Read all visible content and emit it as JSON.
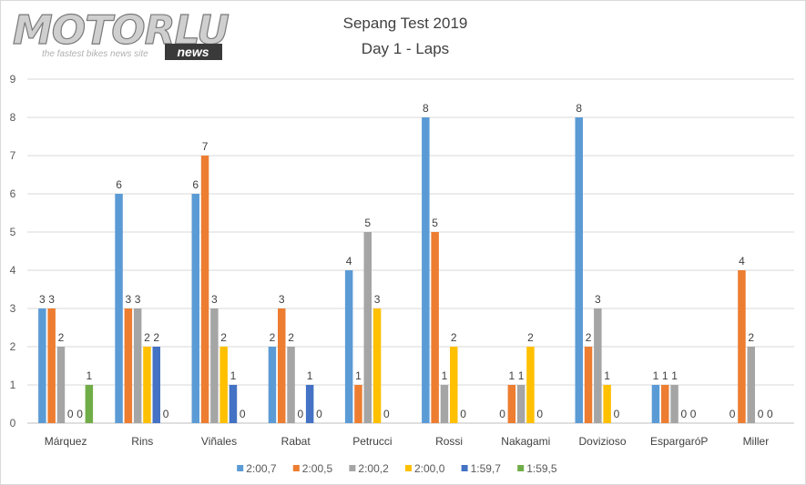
{
  "logo": {
    "brand": "MOTORLU",
    "badge": "news",
    "tagline": "the fastest bikes news site"
  },
  "chart_data": {
    "type": "bar",
    "title": "Sepang Test 2019",
    "subtitle": "Day 1 - Laps",
    "xlabel": "",
    "ylabel": "",
    "ylim": [
      0,
      9
    ],
    "yticks": [
      0,
      1,
      2,
      3,
      4,
      5,
      6,
      7,
      8,
      9
    ],
    "grid": true,
    "legend_position": "bottom",
    "categories": [
      "Márquez",
      "Rins",
      "Viñales",
      "Rabat",
      "Petrucci",
      "Rossi",
      "Nakagami",
      "Dovizioso",
      "EspargaróP",
      "Miller"
    ],
    "series": [
      {
        "name": "2:00,7",
        "color": "#5B9BD5",
        "values": [
          3,
          6,
          6,
          2,
          4,
          8,
          0,
          8,
          1,
          0
        ],
        "labels": [
          "3",
          "6",
          "6",
          "2",
          "4",
          "8",
          "0",
          "8",
          "1",
          "0"
        ]
      },
      {
        "name": "2:00,5",
        "color": "#ED7D31",
        "values": [
          3,
          3,
          7,
          3,
          1,
          5,
          1,
          2,
          1,
          4
        ],
        "labels": [
          "3",
          "3",
          "7",
          "3",
          "1",
          "5",
          "1",
          "2",
          "1",
          "4"
        ]
      },
      {
        "name": "2:00,2",
        "color": "#A5A5A5",
        "values": [
          2,
          3,
          3,
          2,
          5,
          1,
          1,
          3,
          1,
          2
        ],
        "labels": [
          "2",
          "3",
          "3",
          "2",
          "5",
          "1",
          "1",
          "3",
          "1",
          "2"
        ]
      },
      {
        "name": "2:00,0",
        "color": "#FFC000",
        "values": [
          0,
          2,
          2,
          0,
          3,
          2,
          2,
          1,
          0,
          0
        ],
        "labels": [
          "0",
          "2",
          "2",
          "0",
          "3",
          "2",
          "2",
          "1",
          "0",
          "0"
        ]
      },
      {
        "name": "1:59,7",
        "color": "#4472C4",
        "values": [
          0,
          2,
          1,
          1,
          0,
          0,
          0,
          0,
          0,
          0
        ],
        "labels": [
          "0",
          "2",
          "1",
          "1",
          "0",
          "0",
          "0",
          "0",
          "0",
          "0"
        ]
      },
      {
        "name": "1:59,5",
        "color": "#70AD47",
        "values": [
          1,
          0,
          0,
          0,
          null,
          null,
          null,
          null,
          null,
          null
        ],
        "labels": [
          "1",
          "0",
          "0",
          "0",
          "",
          "",
          "",
          "",
          "",
          ""
        ]
      }
    ]
  }
}
